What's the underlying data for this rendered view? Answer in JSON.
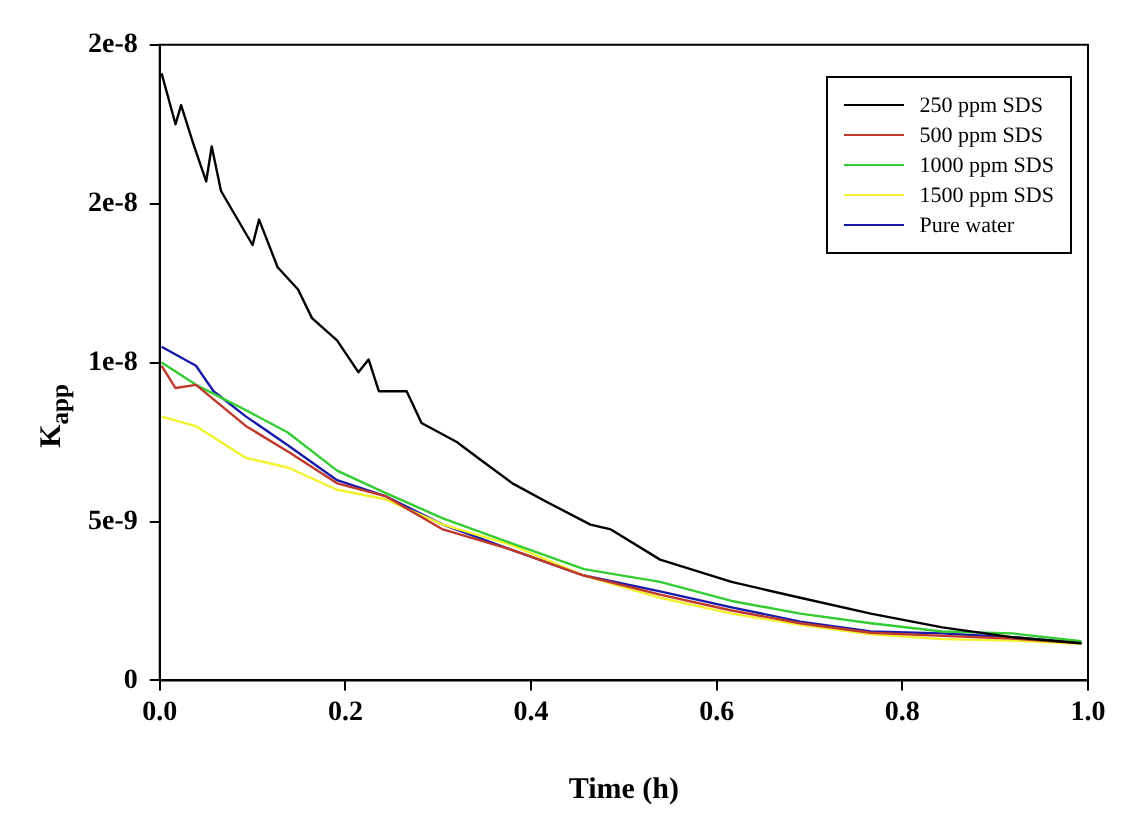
{
  "chart_data": {
    "type": "line",
    "xlabel": "Time (h)",
    "ylabel": "K$_{app}$",
    "legend": "top right",
    "grid": false,
    "xlim": [
      0,
      1
    ],
    "xticks": [
      {
        "value": 0,
        "label": "0.0"
      },
      {
        "value": 0.2,
        "label": "0.2"
      },
      {
        "value": 0.4,
        "label": "0.4"
      },
      {
        "value": 0.6,
        "label": "0.6"
      },
      {
        "value": 0.8,
        "label": "0.8"
      },
      {
        "value": 1,
        "label": "1.0"
      }
    ],
    "ylim": [
      0,
      2e-08
    ],
    "yticks": [
      0,
      {
        "value": 5e-09,
        "label": "5e-9"
      },
      {
        "value": 1e-08,
        "label": "1e-8"
      },
      {
        "value": 1.5e-08,
        "label": "2e-8"
      },
      {
        "value": 2e-08,
        "label": "2e-8"
      }
    ],
    "series": [
      {
        "name": "250 ppm SDS",
        "color": "#000000",
        "x": [
          0.002,
          0.017,
          0.023,
          0.036,
          0.05,
          0.056,
          0.066,
          0.1,
          0.107,
          0.127,
          0.149,
          0.164,
          0.191,
          0.214,
          0.225,
          0.236,
          0.266,
          0.282,
          0.32,
          0.343,
          0.38,
          0.418,
          0.464,
          0.486,
          0.539,
          0.616,
          0.69,
          0.766,
          0.843,
          0.918,
          0.993
        ],
        "values": [
          1.91e-08,
          1.75e-08,
          1.81e-08,
          1.69e-08,
          1.57e-08,
          1.68e-08,
          1.54e-08,
          1.37e-08,
          1.45e-08,
          1.3e-08,
          1.23e-08,
          1.14e-08,
          1.07e-08,
          9.7e-09,
          1.01e-08,
          9.1e-09,
          9.1e-09,
          8.1e-09,
          7.5e-09,
          7e-09,
          6.2e-09,
          5.6e-09,
          4.9e-09,
          4.75e-09,
          3.8e-09,
          3.1e-09,
          2.6e-09,
          2.1e-09,
          1.67e-09,
          1.36e-09,
          1.17e-09
        ]
      },
      {
        "name": "500 ppm SDS",
        "color": "#c0392b",
        "x": [
          0.002,
          0.017,
          0.039,
          0.093,
          0.138,
          0.191,
          0.243,
          0.305,
          0.38,
          0.457,
          0.539,
          0.616,
          0.69,
          0.766,
          0.843,
          0.918,
          0.993
        ],
        "values": [
          9.9e-09,
          9.2e-09,
          9.3e-09,
          8e-09,
          7.2e-09,
          6.2e-09,
          5.8e-09,
          4.75e-09,
          4.1e-09,
          3.3e-09,
          2.7e-09,
          2.2e-09,
          1.8e-09,
          1.5e-09,
          1.4e-09,
          1.32e-09,
          1.17e-09
        ]
      },
      {
        "name": "1000 ppm SDS",
        "color": "#33cc33",
        "x": [
          0.002,
          0.039,
          0.093,
          0.138,
          0.191,
          0.243,
          0.305,
          0.38,
          0.457,
          0.539,
          0.616,
          0.69,
          0.766,
          0.843,
          0.918,
          0.993
        ],
        "values": [
          1e-08,
          9.3e-09,
          8.5e-09,
          7.8e-09,
          6.6e-09,
          5.9e-09,
          5.1e-09,
          4.3e-09,
          3.5e-09,
          3.1e-09,
          2.5e-09,
          2.1e-09,
          1.8e-09,
          1.54e-09,
          1.48e-09,
          1.23e-09
        ]
      },
      {
        "name": "1500 ppm SDS",
        "color": "#f2f230",
        "x": [
          0.002,
          0.039,
          0.093,
          0.138,
          0.191,
          0.243,
          0.305,
          0.38,
          0.457,
          0.539,
          0.616,
          0.69,
          0.766,
          0.843,
          0.918,
          0.993
        ],
        "values": [
          8.3e-09,
          8e-09,
          7e-09,
          6.7e-09,
          6e-09,
          5.7e-09,
          4.9e-09,
          4.25e-09,
          3.3e-09,
          2.6e-09,
          2.1e-09,
          1.75e-09,
          1.45e-09,
          1.3e-09,
          1.25e-09,
          1.15e-09
        ]
      },
      {
        "name": "Pure water",
        "color": "#1a1aaa",
        "x": [
          0.002,
          0.039,
          0.058,
          0.093,
          0.138,
          0.191,
          0.243,
          0.305,
          0.38,
          0.457,
          0.539,
          0.616,
          0.69,
          0.766,
          0.843,
          0.918,
          0.993
        ],
        "values": [
          1.05e-08,
          9.9e-09,
          9.1e-09,
          8.3e-09,
          7.4e-09,
          6.3e-09,
          5.8e-09,
          4.9e-09,
          4.1e-09,
          3.3e-09,
          2.8e-09,
          2.3e-09,
          1.85e-09,
          1.54e-09,
          1.48e-09,
          1.36e-09,
          1.17e-09
        ]
      }
    ]
  }
}
